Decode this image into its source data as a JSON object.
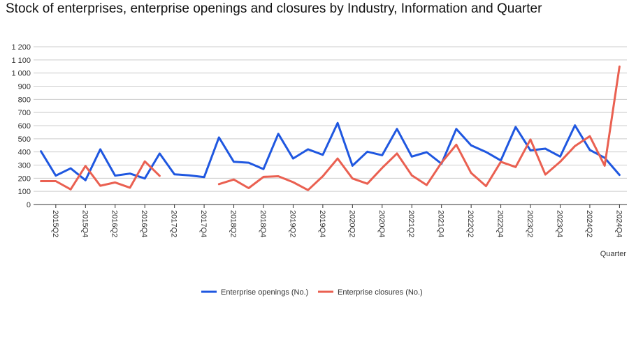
{
  "chart_data": {
    "type": "line",
    "title": "Stock of enterprises, enterprise openings and closures by Industry, Information and Quarter",
    "xlabel": "Quarter",
    "ylabel": "",
    "ylim": [
      0,
      1200
    ],
    "yticks": [
      0,
      100,
      200,
      300,
      400,
      500,
      600,
      700,
      800,
      900,
      1000,
      1100,
      1200
    ],
    "ytick_labels": [
      "0",
      "100",
      "200",
      "300",
      "400",
      "500",
      "600",
      "700",
      "800",
      "900",
      "1 000",
      "1 100",
      "1 200"
    ],
    "grid": true,
    "legend_position": "bottom",
    "x": [
      "2015Q1",
      "2015Q2",
      "2015Q3",
      "2015Q4",
      "2016Q1",
      "2016Q2",
      "2016Q3",
      "2016Q4",
      "2017Q1",
      "2017Q2",
      "2017Q3",
      "2017Q4",
      "2018Q1",
      "2018Q2",
      "2018Q3",
      "2018Q4",
      "2019Q1",
      "2019Q2",
      "2019Q3",
      "2019Q4",
      "2020Q1",
      "2020Q2",
      "2020Q3",
      "2020Q4",
      "2021Q1",
      "2021Q2",
      "2021Q3",
      "2021Q4",
      "2022Q1",
      "2022Q2",
      "2022Q3",
      "2022Q4",
      "2023Q1",
      "2023Q2",
      "2023Q3",
      "2023Q4",
      "2024Q1",
      "2024Q2",
      "2024Q3",
      "2024Q4"
    ],
    "x_tick_labels": [
      "2015Q2",
      "2015Q4",
      "2016Q2",
      "2016Q4",
      "2017Q2",
      "2017Q4",
      "2018Q2",
      "2018Q4",
      "2019Q2",
      "2019Q4",
      "2020Q2",
      "2020Q4",
      "2021Q2",
      "2021Q4",
      "2022Q2",
      "2022Q4",
      "2023Q2",
      "2023Q4",
      "2024Q2",
      "2024Q4"
    ],
    "series": [
      {
        "name": "Enterprise openings (No.)",
        "color": "#1f57e0",
        "values": [
          405,
          220,
          275,
          185,
          420,
          220,
          235,
          198,
          388,
          230,
          222,
          208,
          510,
          325,
          318,
          270,
          538,
          350,
          420,
          378,
          620,
          295,
          402,
          375,
          575,
          365,
          398,
          310,
          575,
          450,
          400,
          335,
          590,
          412,
          425,
          365,
          602,
          415,
          355,
          225
        ]
      },
      {
        "name": "Enterprise closures (No.)",
        "color": "#ea6051",
        "values": [
          178,
          178,
          115,
          293,
          143,
          168,
          128,
          328,
          218,
          null,
          null,
          null,
          155,
          190,
          125,
          210,
          215,
          170,
          110,
          215,
          350,
          198,
          158,
          278,
          388,
          222,
          148,
          318,
          455,
          240,
          140,
          325,
          285,
          495,
          228,
          325,
          445,
          520,
          295,
          1050
        ]
      }
    ]
  }
}
